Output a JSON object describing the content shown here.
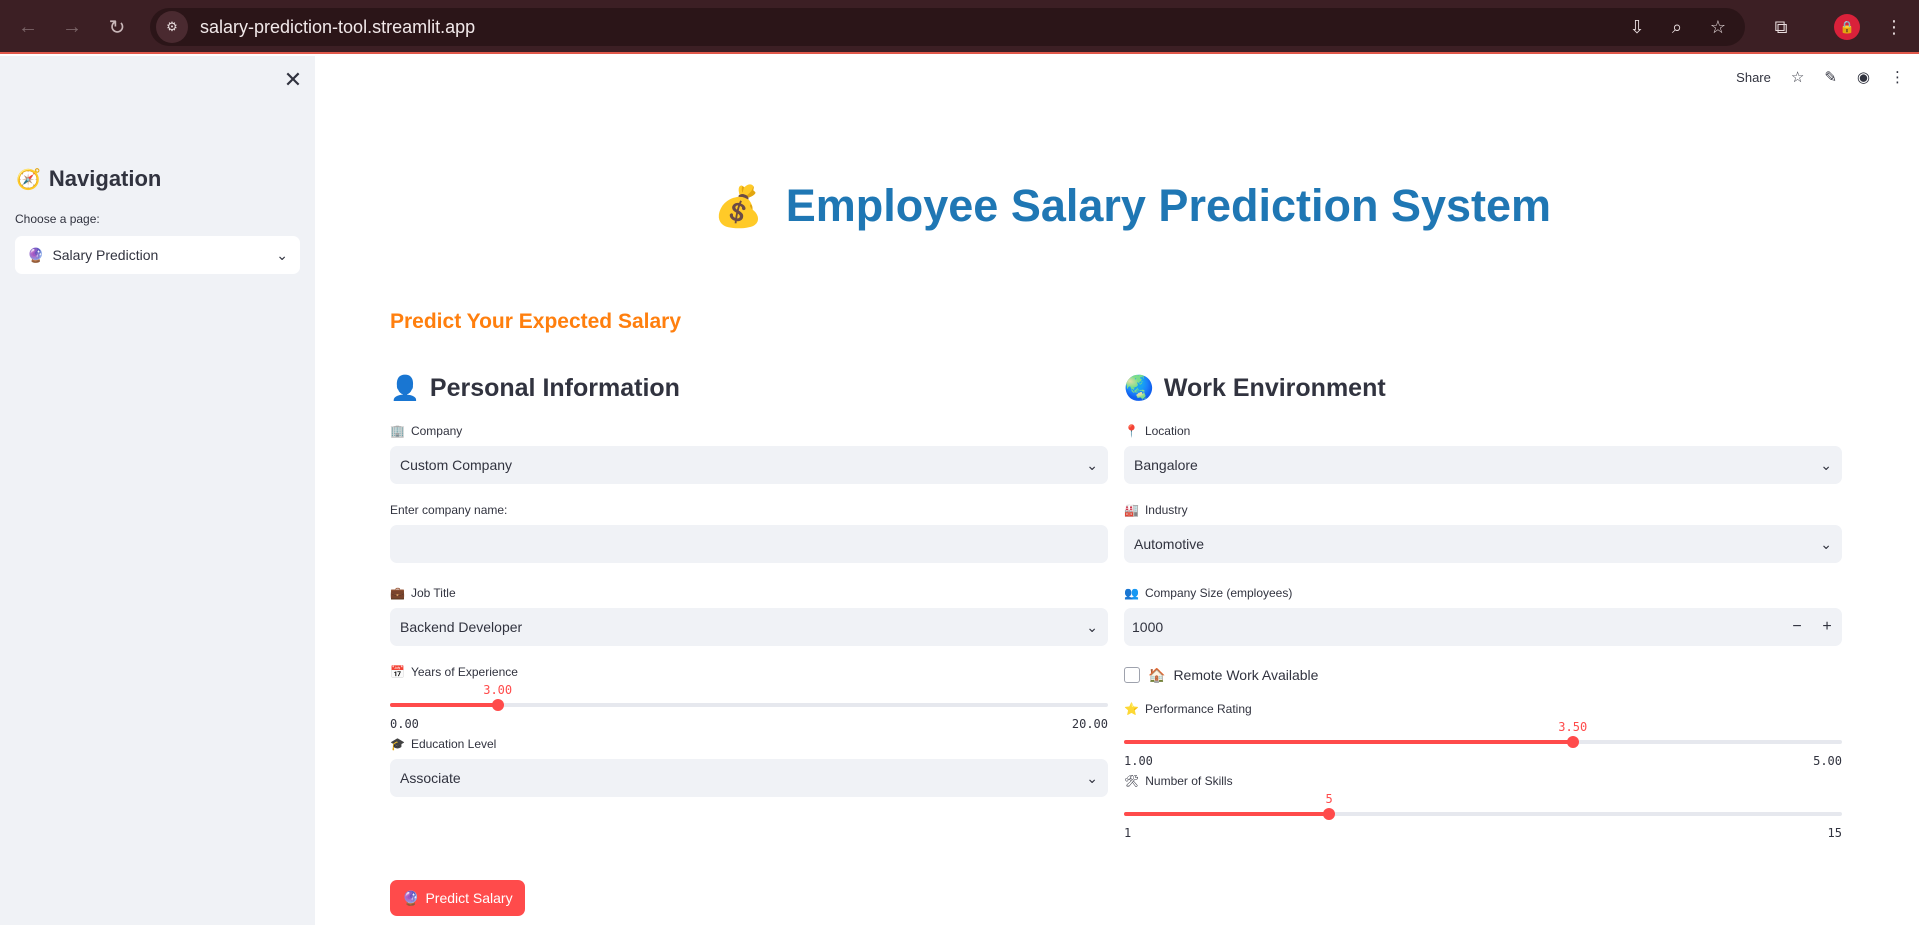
{
  "browser": {
    "url": "salary-prediction-tool.streamlit.app",
    "back_icon": "←",
    "forward_icon": "→",
    "reload_icon": "↻",
    "info_icon": "⚙",
    "install_icon": "⇩",
    "zoom_icon": "⌕",
    "star_icon": "☆",
    "extensions_icon": "⧉",
    "menu_icon": "⋮",
    "profile_icon": "🔒"
  },
  "sidebar": {
    "close_icon": "✕",
    "nav_emoji": "🧭",
    "nav_title": "Navigation",
    "choose_label": "Choose a page:",
    "page_emoji": "🔮",
    "page_value": "Salary Prediction",
    "chevron": "⌄"
  },
  "toolbar": {
    "share": "Share",
    "star_icon": "☆",
    "edit_icon": "✎",
    "github_icon": "◉",
    "menu_icon": "⋮"
  },
  "main": {
    "title_emoji": "💰",
    "title": "Employee Salary Prediction System",
    "subtitle": "Predict Your Expected Salary",
    "predict_emoji": "🔮",
    "predict_label": "Predict Salary"
  },
  "personal": {
    "emoji": "👤",
    "heading": "Personal Information",
    "company_emoji": "🏢",
    "company_label": "Company",
    "company_value": "Custom Company",
    "company_name_label": "Enter company name:",
    "company_name_value": "",
    "job_emoji": "💼",
    "job_label": "Job Title",
    "job_value": "Backend Developer",
    "exp_emoji": "📅",
    "exp_label": "Years of Experience",
    "exp_value": "3.00",
    "exp_fraction": 0.15,
    "exp_min": "0.00",
    "exp_max": "20.00",
    "edu_emoji": "🎓",
    "edu_label": "Education Level",
    "edu_value": "Associate"
  },
  "work": {
    "emoji": "🌏",
    "heading": "Work Environment",
    "loc_emoji": "📍",
    "loc_label": "Location",
    "loc_value": "Bangalore",
    "ind_emoji": "🏭",
    "ind_label": "Industry",
    "ind_value": "Automotive",
    "size_emoji": "👥",
    "size_label": "Company Size (employees)",
    "size_value": "1000",
    "minus": "−",
    "plus": "+",
    "remote_emoji": "🏠",
    "remote_label": "Remote Work Available",
    "perf_emoji": "⭐",
    "perf_label": "Performance Rating",
    "perf_value": "3.50",
    "perf_fraction": 0.625,
    "perf_min": "1.00",
    "perf_max": "5.00",
    "skills_emoji": "🛠",
    "skills_label": "Number of Skills",
    "skills_value": "5",
    "skills_fraction": 0.2857,
    "skills_min": "1",
    "skills_max": "15"
  }
}
